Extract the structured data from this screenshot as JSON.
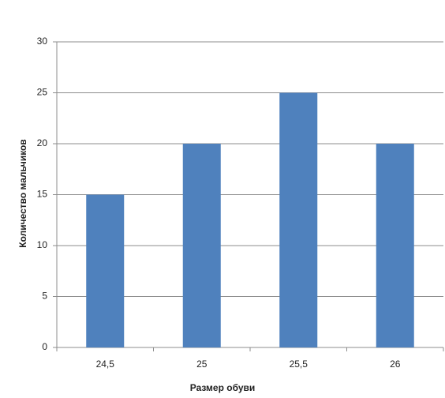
{
  "chart_data": {
    "type": "bar",
    "x_label": "Размер обуви",
    "y_label": "Количество мальчиков",
    "categories": [
      "24,5",
      "25",
      "25,5",
      "26"
    ],
    "values": [
      15,
      20,
      25,
      20
    ],
    "color": "#4f81bd",
    "ylim": [
      0,
      30
    ],
    "yticks": [
      0,
      5,
      10,
      15,
      20,
      25,
      30
    ],
    "grid": true
  }
}
